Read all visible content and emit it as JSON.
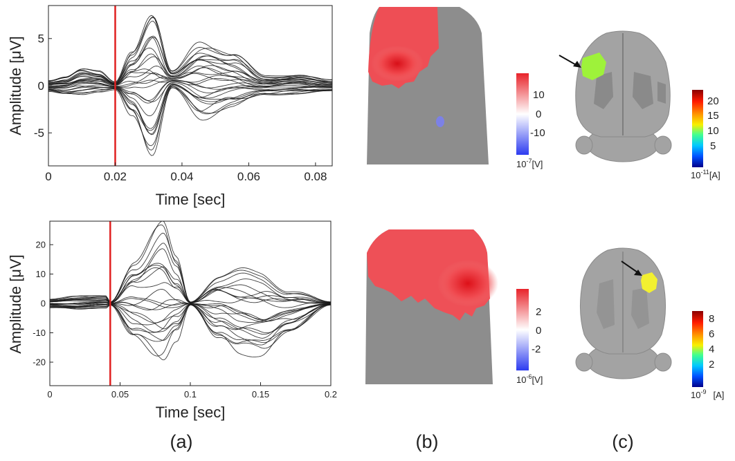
{
  "chart_data": [
    {
      "type": "line",
      "panel": "(a)",
      "xlabel": "Time [sec]",
      "ylabel": "Amplitude [μV]",
      "xlim": [
        0,
        0.085
      ],
      "ylim": [
        -8.5,
        8.5
      ],
      "xticks": [
        0,
        0.02,
        0.04,
        0.06,
        0.08
      ],
      "xtick_labels": [
        "0",
        "0.02",
        "0.04",
        "0.06",
        "0.08"
      ],
      "yticks": [
        -5,
        0,
        5
      ],
      "ytick_labels": [
        "-5",
        "0",
        "5"
      ],
      "marker_line_x": 0.02,
      "marker_color": "#e02020",
      "trace_color": "#1a1a1a",
      "series_count": 28,
      "envelope": {
        "t": [
          0,
          0.005,
          0.01,
          0.015,
          0.02,
          0.025,
          0.031,
          0.037,
          0.046,
          0.055,
          0.065,
          0.075,
          0.085
        ],
        "max": [
          0.6,
          1.0,
          1.8,
          1.5,
          0.4,
          4.0,
          8.0,
          1.5,
          4.8,
          3.5,
          1.0,
          1.2,
          0.6
        ],
        "min": [
          -0.6,
          -0.9,
          -0.9,
          -0.7,
          -0.4,
          -3.0,
          -7.2,
          -0.3,
          -3.3,
          -2.2,
          -1.0,
          -0.8,
          -0.6
        ]
      }
    },
    {
      "type": "line",
      "panel": "(a)",
      "xlabel": "Time [sec]",
      "ylabel": "Amplitude [μV]",
      "xlim": [
        0,
        0.2
      ],
      "ylim": [
        -28,
        28
      ],
      "xticks": [
        0,
        0.05,
        0.1,
        0.15,
        0.2
      ],
      "xtick_labels": [
        "0",
        "0.05",
        "0.1",
        "0.15",
        "0.2"
      ],
      "yticks": [
        -20,
        -10,
        0,
        10,
        20
      ],
      "ytick_labels": [
        "-20",
        "-10",
        "0",
        "10",
        "20"
      ],
      "marker_line_x": 0.043,
      "marker_color": "#e02020",
      "trace_color": "#1a1a1a",
      "series_count": 24,
      "envelope": {
        "t": [
          0,
          0.02,
          0.04,
          0.043,
          0.06,
          0.08,
          0.09,
          0.1,
          0.12,
          0.135,
          0.15,
          0.17,
          0.2
        ],
        "max": [
          1.5,
          2.5,
          2.5,
          0.5,
          15,
          26.5,
          15,
          0.5,
          10,
          11,
          10,
          5,
          0.5
        ],
        "min": [
          -1.5,
          -2.0,
          -1.5,
          -0.5,
          -12,
          -20,
          -12,
          -0.5,
          -12,
          -17,
          -17,
          -10,
          -0.5
        ]
      }
    }
  ],
  "colorbars": [
    {
      "panel": "(b)",
      "ticks": [
        "10",
        "0",
        "-10"
      ],
      "unit_base": "10",
      "unit_exp": "-7",
      "unit": "[V]",
      "scale": "blue-white-red"
    },
    {
      "panel": "(c)",
      "ticks": [
        "20",
        "15",
        "10",
        "5"
      ],
      "unit_base": "10",
      "unit_exp": "-11",
      "unit": "[A]",
      "scale": "jet"
    },
    {
      "panel": "(b)",
      "ticks": [
        "2",
        "0",
        "-2"
      ],
      "unit_base": "10",
      "unit_exp": "-6",
      "unit": "[V]",
      "scale": "blue-white-red"
    },
    {
      "panel": "(c)",
      "ticks": [
        "8",
        "6",
        "4",
        "2"
      ],
      "unit_base": "10",
      "unit_exp": "-9",
      "unit": "[A]",
      "scale": "jet"
    }
  ],
  "panel_labels": [
    "(a)",
    "(b)",
    "(c)"
  ],
  "colors": {
    "brain": "#a3a3a3",
    "brain_dark": "#8c8c8c",
    "map_gray": "#8d8d8d",
    "hot_red": "#e8232a",
    "source_green": "#9ef23a",
    "source_yellow": "#f2f030"
  }
}
